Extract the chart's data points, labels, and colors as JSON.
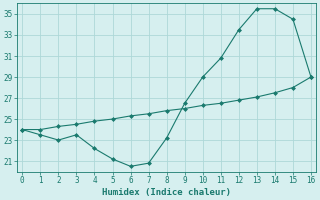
{
  "xlabel": "Humidex (Indice chaleur)",
  "x": [
    0,
    1,
    2,
    3,
    4,
    5,
    6,
    7,
    8,
    9,
    10,
    11,
    12,
    13,
    14,
    15,
    16
  ],
  "line1_y": [
    24.0,
    23.5,
    23.0,
    23.5,
    22.2,
    21.2,
    20.5,
    20.8,
    23.2,
    26.5,
    29.0,
    30.8,
    33.5,
    35.5,
    35.5,
    34.5,
    29.0
  ],
  "line2_y": [
    24.0,
    24.0,
    24.3,
    24.5,
    24.8,
    25.0,
    25.3,
    25.5,
    25.8,
    26.0,
    26.3,
    26.5,
    26.8,
    27.1,
    27.5,
    28.0,
    29.0
  ],
  "line_color": "#1a7a6e",
  "bg_color": "#d6efef",
  "grid_color": "#aed8d8",
  "ylim": [
    20,
    36
  ],
  "yticks": [
    21,
    23,
    25,
    27,
    29,
    31,
    33,
    35
  ],
  "xlim": [
    -0.3,
    16.3
  ],
  "xticks": [
    0,
    1,
    2,
    3,
    4,
    5,
    6,
    7,
    8,
    9,
    10,
    11,
    12,
    13,
    14,
    15,
    16
  ]
}
